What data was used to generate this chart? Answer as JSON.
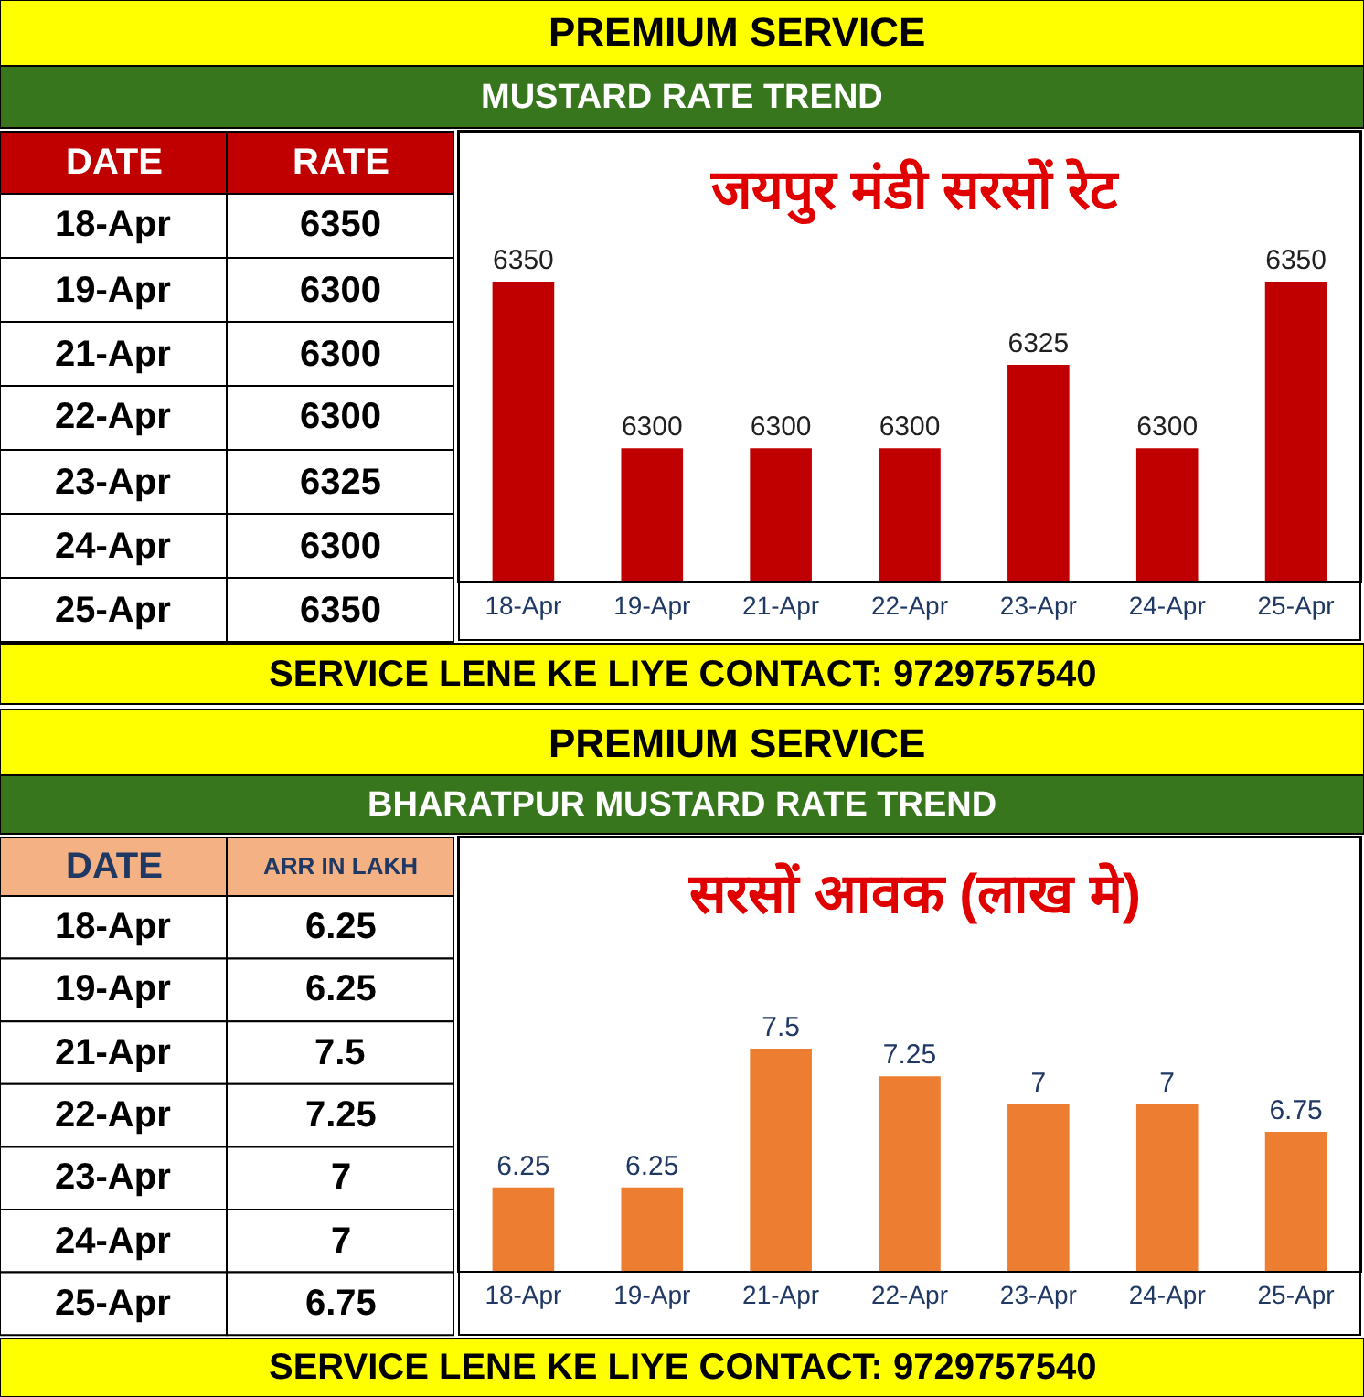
{
  "chart_data": [
    {
      "type": "bar",
      "title": "जयपुर मंडी सरसों रेट",
      "subtitle": "MUSTARD RATE TREND",
      "annotations": [
        "PREMIUM SERVICE",
        "DATE",
        "RATE",
        "SERVICE LENE KE LIYE CONTACT: 9729757540"
      ],
      "categories": [
        "18-Apr",
        "19-Apr",
        "21-Apr",
        "22-Apr",
        "23-Apr",
        "24-Apr",
        "25-Apr"
      ],
      "values": [
        6350,
        6300,
        6300,
        6300,
        6325,
        6300,
        6350
      ],
      "color": "#c00000",
      "value_labels": [
        "6350",
        "6300",
        "6300",
        "6300",
        "6325",
        "6300",
        "6350"
      ],
      "ylim": [
        6260,
        6395
      ],
      "tick_labels": "x"
    },
    {
      "type": "bar",
      "title": "सरसों आवक (लाख मे)",
      "subtitle": "BHARATPUR MUSTARD RATE TREND",
      "annotations": [
        "PREMIUM SERVICE",
        "DATE",
        "ARR IN LAKH",
        "SERVICE LENE KE LIYE CONTACT: 9729757540"
      ],
      "categories": [
        "18-Apr",
        "19-Apr",
        "21-Apr",
        "22-Apr",
        "23-Apr",
        "24-Apr",
        "25-Apr"
      ],
      "values": [
        6.25,
        6.25,
        7.5,
        7.25,
        7,
        7,
        6.75
      ],
      "color": "#ed7d31",
      "value_labels": [
        "6.25",
        "6.25",
        "7.5",
        "7.25",
        "7",
        "7",
        "6.75"
      ],
      "ylim": [
        5.5,
        9.4
      ],
      "tick_labels": "x"
    }
  ]
}
